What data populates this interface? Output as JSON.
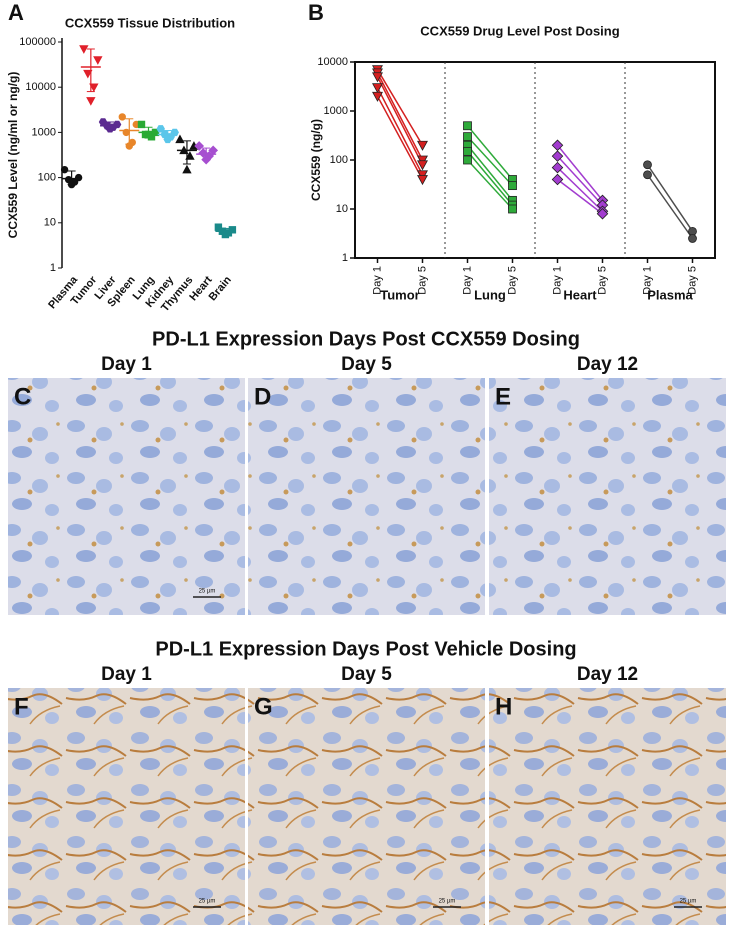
{
  "chart_data": [
    {
      "type": "strip",
      "letter": "A",
      "title": "CCX559 Tissue Distribution",
      "y_label": "CCX559 Level (ng/ml or ng/g)",
      "log_y": true,
      "ylim": [
        1,
        100000
      ],
      "yticks": [
        1,
        10,
        100,
        1000,
        10000,
        100000
      ],
      "categories": [
        "Plasma",
        "Tumor",
        "Liver",
        "Spleen",
        "Lung",
        "Kidney",
        "Thymus",
        "Heart",
        "Brain"
      ],
      "colors": [
        "#111111",
        "#e0202a",
        "#5b2a90",
        "#e8862a",
        "#2aaa35",
        "#5bc6ea",
        "#111111",
        "#a64fd0",
        "#1a8a8a"
      ],
      "markers": [
        "circle",
        "triangle-down",
        "hexagon",
        "circle",
        "square",
        "hexagon",
        "triangle-up",
        "diamond",
        "square"
      ],
      "points": [
        [
          150,
          100,
          90,
          80,
          70
        ],
        [
          70000,
          40000,
          20000,
          10000,
          5000
        ],
        [
          1700,
          1500,
          1400,
          1300,
          1200
        ],
        [
          2200,
          1500,
          1000,
          600,
          500
        ],
        [
          1500,
          1000,
          900,
          800,
          900
        ],
        [
          1200,
          1000,
          900,
          800,
          700
        ],
        [
          700,
          500,
          400,
          300,
          150
        ],
        [
          500,
          400,
          350,
          300,
          250
        ],
        [
          8,
          7,
          6.5,
          6,
          5.5
        ]
      ],
      "means": [
        95,
        28000,
        1400,
        1100,
        1000,
        900,
        400,
        330,
        6.5
      ],
      "ranges": [
        [
          70,
          140
        ],
        [
          8000,
          70000
        ],
        [
          1150,
          1700
        ],
        [
          550,
          2000
        ],
        [
          750,
          1300
        ],
        [
          700,
          1100
        ],
        [
          200,
          650
        ],
        [
          250,
          450
        ],
        [
          5.5,
          7.5
        ]
      ]
    },
    {
      "type": "paired_line",
      "letter": "B",
      "title": "CCX559 Drug Level Post Dosing",
      "y_label": "CCX559 (ng/g)",
      "log_y": true,
      "ylim": [
        1,
        10000
      ],
      "yticks": [
        1,
        10,
        100,
        1000,
        10000
      ],
      "categories": [
        "Day 1",
        "Day 5",
        "Day 1",
        "Day 5",
        "Day 1",
        "Day 5",
        "Day 1",
        "Day 5"
      ],
      "groups": [
        {
          "name": "Tumor",
          "color": "#d42020",
          "marker": "triangle-down",
          "day1": [
            7000,
            6000,
            5000,
            3000,
            2000
          ],
          "day5": [
            200,
            100,
            80,
            50,
            40
          ]
        },
        {
          "name": "Lung",
          "color": "#2eaa3a",
          "marker": "square",
          "day1": [
            500,
            300,
            200,
            150,
            100
          ],
          "day5": [
            40,
            30,
            15,
            12,
            10
          ]
        },
        {
          "name": "Heart",
          "color": "#a23ccf",
          "marker": "diamond",
          "day1": [
            200,
            120,
            70,
            40
          ],
          "day5": [
            15,
            12,
            9,
            8
          ]
        },
        {
          "name": "Plasma",
          "color": "#4d4d4d",
          "marker": "circle",
          "day1": [
            80,
            50
          ],
          "day5": [
            3.5,
            2.5
          ]
        }
      ]
    }
  ],
  "image_sections": [
    {
      "title": "PD-L1 Expression Days Post CCX559 Dosing",
      "panels": [
        {
          "letter": "C",
          "day": "Day 1",
          "scale_bar": "25 µm"
        },
        {
          "letter": "D",
          "day": "Day 5"
        },
        {
          "letter": "E",
          "day": "Day 12"
        }
      ]
    },
    {
      "title": "PD-L1 Expression Days Post Vehicle Dosing",
      "panels": [
        {
          "letter": "F",
          "day": "Day 1",
          "scale_bar": "25 µm"
        },
        {
          "letter": "G",
          "day": "Day 5",
          "scale_bar": "25 µm"
        },
        {
          "letter": "H",
          "day": "Day 12",
          "scale_bar": "25 µm"
        }
      ]
    }
  ]
}
